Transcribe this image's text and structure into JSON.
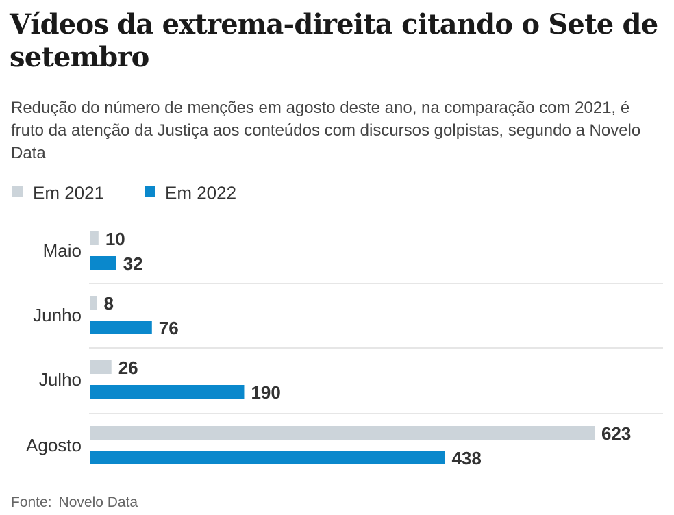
{
  "title": "Vídeos da extrema-direita citando o Sete de setembro",
  "subtitle": "Redução do número de menções em agosto deste ano, na comparação com 2021, é fruto da atenção da Justiça aos conteúdos com discursos golpistas, segundo a Novelo Data",
  "legend": [
    {
      "label": "Em 2021",
      "color": "#ccd4da"
    },
    {
      "label": "Em 2022",
      "color": "#0a88cc"
    }
  ],
  "chart_data": {
    "type": "bar",
    "orientation": "horizontal",
    "title": "Vídeos da extrema-direita citando o Sete de setembro",
    "categories": [
      "Maio",
      "Junho",
      "Julho",
      "Agosto"
    ],
    "series": [
      {
        "name": "Em 2021",
        "color": "#ccd4da",
        "values": [
          10,
          8,
          26,
          623
        ]
      },
      {
        "name": "Em 2022",
        "color": "#0a88cc",
        "values": [
          32,
          76,
          190,
          438
        ]
      }
    ],
    "xlim": [
      0,
      623
    ],
    "grid": false,
    "legend_position": "top-left",
    "data_labels": true
  },
  "source": {
    "label": "Fonte:",
    "name": "Novelo Data"
  }
}
